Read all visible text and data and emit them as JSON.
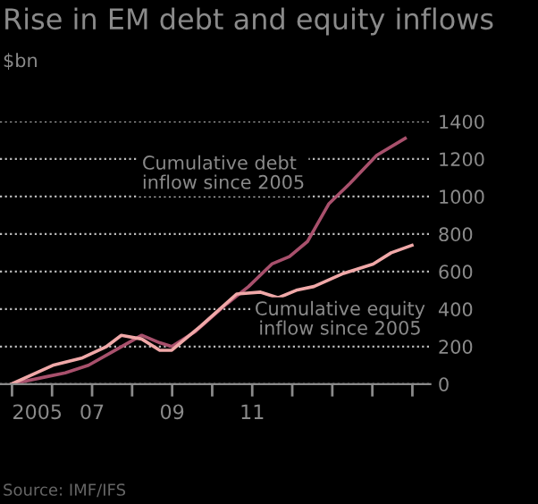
{
  "chart_data": {
    "type": "line",
    "title": "Rise in EM debt and equity inflows",
    "subtitle": "$bn",
    "annotations": [
      "Source: IMF/IFS"
    ],
    "series": [
      {
        "name": "Cumulative debt\ninflow since 2005",
        "color": "#a8506c",
        "x": [
          2004.99,
          2005.88,
          2006.33,
          2006.91,
          2007.49,
          2008.24,
          2008.69,
          2008.99,
          2009.58,
          2010.32,
          2010.91,
          2011.49,
          2011.93,
          2012.38,
          2012.91,
          2013.44,
          2014.11,
          2014.82
        ],
        "values": [
          0,
          40,
          60,
          100,
          170,
          260,
          220,
          200,
          280,
          420,
          520,
          640,
          680,
          760,
          960,
          1070,
          1220,
          1310
        ]
      },
      {
        "name": "Cumulative equity\ninflow since 2005",
        "color": "#f0a8a8",
        "x": [
          2004.99,
          2006.02,
          2006.76,
          2007.36,
          2007.73,
          2008.24,
          2008.69,
          2008.99,
          2009.72,
          2010.61,
          2011.21,
          2011.65,
          2012.1,
          2012.54,
          2013.28,
          2014.02,
          2014.47,
          2014.99
        ],
        "values": [
          0,
          100,
          140,
          200,
          260,
          240,
          180,
          180,
          310,
          480,
          490,
          460,
          500,
          520,
          590,
          640,
          700,
          740
        ]
      }
    ],
    "xlim": [
      2004.7,
      2015.45
    ],
    "xticks": [
      {
        "value": 2005,
        "label": "2005"
      },
      {
        "value": 2006,
        "label": null
      },
      {
        "value": 2007,
        "label": "07"
      },
      {
        "value": 2008,
        "label": null
      },
      {
        "value": 2009,
        "label": "09"
      },
      {
        "value": 2010,
        "label": null
      },
      {
        "value": 2011,
        "label": "11"
      },
      {
        "value": 2012,
        "label": null
      },
      {
        "value": 2013,
        "label": null
      },
      {
        "value": 2014,
        "label": null
      },
      {
        "value": 2015,
        "label": null
      }
    ],
    "ylim": [
      0,
      1400
    ],
    "yticks": [
      0,
      200,
      400,
      600,
      800,
      1000,
      1200,
      1400
    ],
    "grid": "y"
  }
}
